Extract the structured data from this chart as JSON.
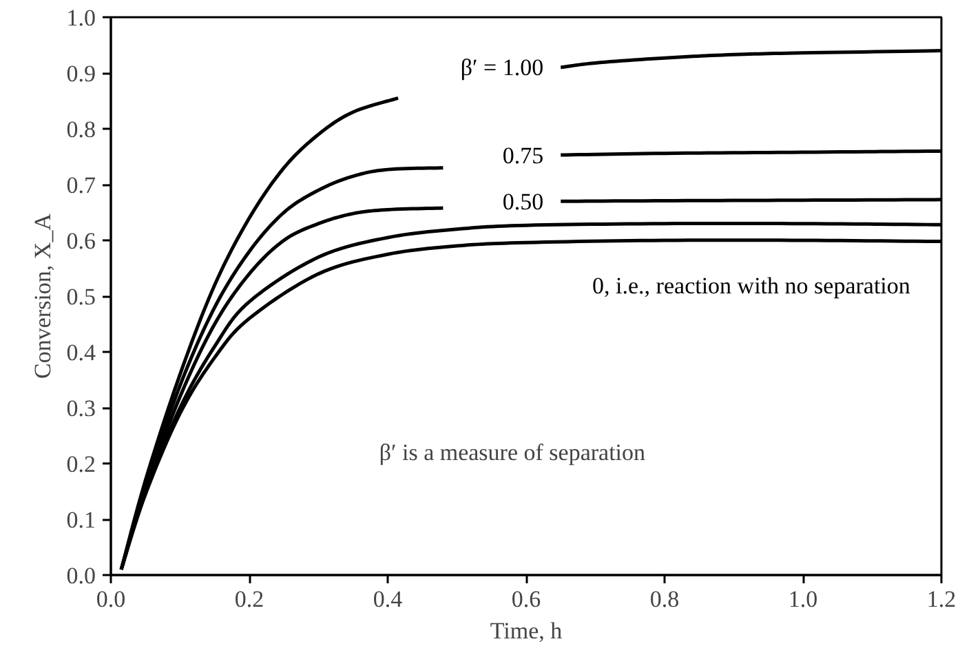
{
  "chart_data": {
    "type": "line",
    "xlabel": "Time, h",
    "ylabel": "Conversion, X_A",
    "xlim": [
      0,
      1.2
    ],
    "ylim": [
      0,
      1.0
    ],
    "xticks": [
      {
        "value": 0,
        "label": "0.0"
      },
      0.2,
      0.4,
      0.6,
      0.8,
      {
        "value": 1,
        "label": "1.0"
      },
      1.2
    ],
    "yticks": [
      {
        "value": 0,
        "label": "0.0"
      },
      0.1,
      0.2,
      0.3,
      0.4,
      0.5,
      0.6,
      0.7,
      0.8,
      0.9,
      {
        "value": 1,
        "label": "1.0"
      }
    ],
    "grid": false,
    "marker": "none",
    "line_style": "solid",
    "series": [
      {
        "name": "β′ = 1.00",
        "color": "#000000",
        "x": [
          0.015,
          0.05,
          0.1,
          0.15,
          0.2,
          0.25,
          0.3,
          0.35,
          0.415,
          0.5,
          0.65,
          0.7,
          0.8,
          0.9,
          1.0,
          1.2
        ],
        "values": [
          0.01,
          0.17,
          0.36,
          0.52,
          0.64,
          0.73,
          0.79,
          0.83,
          0.855,
          null,
          0.91,
          0.918,
          0.927,
          0.933,
          0.936,
          0.94
        ]
      },
      {
        "name": "0.75",
        "color": "#000000",
        "x": [
          0.015,
          0.05,
          0.1,
          0.15,
          0.2,
          0.25,
          0.3,
          0.35,
          0.4,
          0.48,
          0.55,
          0.65,
          0.8,
          1.0,
          1.2
        ],
        "values": [
          0.01,
          0.16,
          0.34,
          0.48,
          0.58,
          0.65,
          0.69,
          0.715,
          0.727,
          0.73,
          null,
          0.753,
          0.756,
          0.758,
          0.76
        ]
      },
      {
        "name": "0.50",
        "color": "#000000",
        "x": [
          0.015,
          0.05,
          0.1,
          0.15,
          0.2,
          0.25,
          0.3,
          0.35,
          0.4,
          0.48,
          0.55,
          0.65,
          0.8,
          1.0,
          1.2
        ],
        "values": [
          0.01,
          0.155,
          0.32,
          0.45,
          0.54,
          0.6,
          0.63,
          0.648,
          0.655,
          0.658,
          null,
          0.67,
          0.671,
          0.672,
          0.673
        ]
      },
      {
        "color": "#000000",
        "x": [
          0.015,
          0.05,
          0.1,
          0.15,
          0.2,
          0.3,
          0.4,
          0.5,
          0.6,
          0.8,
          1.0,
          1.2
        ],
        "values": [
          0.01,
          0.15,
          0.3,
          0.41,
          0.49,
          0.57,
          0.605,
          0.62,
          0.627,
          0.63,
          0.63,
          0.628
        ]
      },
      {
        "name": "0, i.e., reaction with no separation",
        "color": "#000000",
        "x": [
          0.015,
          0.05,
          0.1,
          0.15,
          0.2,
          0.3,
          0.4,
          0.5,
          0.6,
          0.8,
          1.0,
          1.2
        ],
        "values": [
          0.01,
          0.145,
          0.29,
          0.39,
          0.46,
          0.54,
          0.575,
          0.59,
          0.596,
          0.6,
          0.6,
          0.598
        ]
      }
    ],
    "annotations": [
      "β′ is a measure of separation"
    ]
  }
}
